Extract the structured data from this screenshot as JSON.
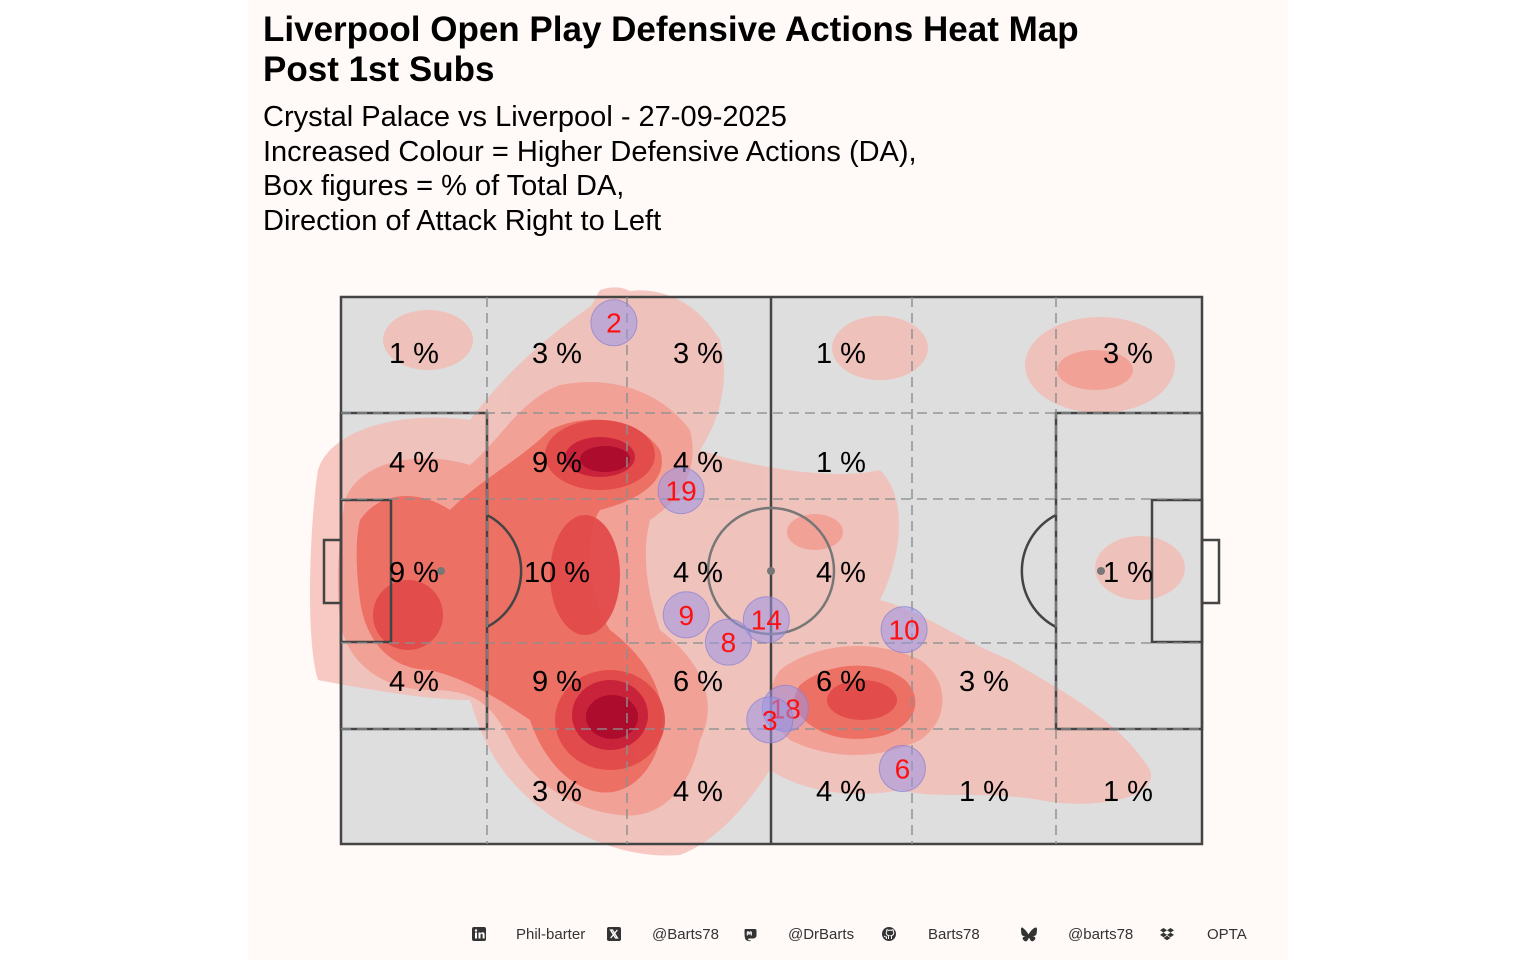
{
  "header": {
    "title_line1": "Liverpool  Open Play Defensive Actions Heat Map",
    "title_line2": "Post 1st Subs",
    "subtitle_lines": [
      "Crystal Palace vs Liverpool - 27-09-2025",
      "Increased Colour = Higher Defensive Actions (DA),",
      "Box figures = % of Total DA,",
      "Direction of Attack Right to Left"
    ]
  },
  "chart_data": {
    "type": "heatmap",
    "zones": {
      "columns": 6,
      "rows": 5,
      "percentages": [
        [
          "1 %",
          "3 %",
          "3 %",
          "1 %",
          "",
          "3 %"
        ],
        [
          "4 %",
          "9 %",
          "4 %",
          "1 %",
          "",
          ""
        ],
        [
          "9 %",
          "10 %",
          "4 %",
          "4 %",
          "",
          "1 %"
        ],
        [
          "4 %",
          "9 %",
          "6 %",
          "6 %",
          "3 %",
          ""
        ],
        [
          "",
          "3 %",
          "4 %",
          "4 %",
          "1 %",
          "1 %"
        ]
      ]
    },
    "players": [
      {
        "number": "2",
        "x": 31.7,
        "y": 95.3
      },
      {
        "number": "19",
        "x": 39.5,
        "y": 64.6
      },
      {
        "number": "9",
        "x": 40.1,
        "y": 41.9
      },
      {
        "number": "14",
        "x": 49.4,
        "y": 41.0
      },
      {
        "number": "8",
        "x": 45.0,
        "y": 36.9
      },
      {
        "number": "10",
        "x": 65.4,
        "y": 39.2
      },
      {
        "number": "18",
        "x": 51.6,
        "y": 24.8
      },
      {
        "number": "3",
        "x": 49.8,
        "y": 22.7
      },
      {
        "number": "6",
        "x": 65.2,
        "y": 13.8
      }
    ],
    "colors": {
      "pitch": "#dedede",
      "heat_low": "#f4b8b0",
      "heat_mid": "#e9504c",
      "heat_high": "#b01030",
      "player_marker": "#9a95e6",
      "player_number": "#ff1010"
    },
    "direction_of_attack": "right-to-left"
  },
  "footer": {
    "items": [
      {
        "icon": "linkedin-icon",
        "label": "Phil-barter"
      },
      {
        "icon": "x-icon",
        "label": "@Barts78"
      },
      {
        "icon": "mastodon-icon",
        "label": "@DrBarts"
      },
      {
        "icon": "github-icon",
        "label": "Barts78"
      },
      {
        "icon": "bluesky-icon",
        "label": "@barts78"
      },
      {
        "icon": "dropbox-icon",
        "label": "OPTA"
      }
    ]
  }
}
